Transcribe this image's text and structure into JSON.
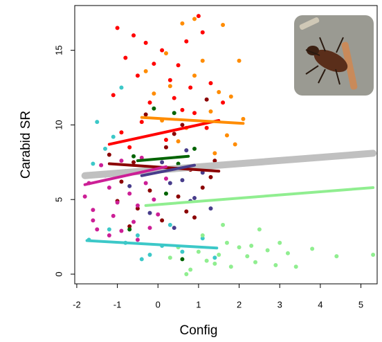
{
  "chart_data": {
    "type": "scatter",
    "x_label": "Config",
    "y_label": "Carabid SR",
    "xlim": [
      -2.05,
      5.4
    ],
    "ylim": [
      -0.65,
      18
    ],
    "xticks": [
      -2,
      -1,
      0,
      1,
      2,
      3,
      4,
      5
    ],
    "yticks": [
      0,
      5,
      10,
      15
    ],
    "overall_fit": {
      "color": "#c0c0c0",
      "x": [
        -1.8,
        5.3
      ],
      "y": [
        6.6,
        8.1
      ]
    },
    "series": [
      {
        "color": "#ff0000",
        "x": [
          -1,
          -0.6,
          -0.3,
          0.1,
          -0.8,
          0.5,
          1,
          1.1,
          -0.5,
          0.3,
          0.8,
          -1.1,
          0.6,
          -0.2,
          1.3,
          -0.9,
          0.2,
          -0.4,
          0.9,
          1.2,
          -0.7,
          0.4,
          1.6,
          0.7,
          -0.1
        ],
        "y": [
          16.5,
          16,
          15.5,
          15,
          14.5,
          14,
          17.3,
          16.2,
          13.3,
          13,
          12.5,
          12,
          11,
          11.5,
          12.8,
          9.5,
          9,
          10.2,
          10.8,
          9.8,
          8.5,
          11.8,
          11.5,
          15.6,
          14.1
        ],
        "fit": {
          "x": [
            -1.2,
            1.5
          ],
          "y": [
            8.7,
            10.3
          ]
        }
      },
      {
        "color": "#ff8c00",
        "x": [
          0.6,
          1.6,
          0.2,
          1.1,
          2,
          -0.3,
          0.9,
          1.5,
          0.3,
          1.8,
          -0.1,
          1.3,
          0.7,
          1.7,
          0.5,
          1.4,
          1.9,
          2.1,
          0.1,
          0.9
        ],
        "y": [
          16.8,
          16.7,
          14.8,
          14.3,
          14.3,
          13.6,
          13.3,
          12.2,
          12.6,
          11.9,
          12.1,
          10.9,
          9.8,
          9.3,
          8.9,
          8.1,
          8.7,
          10.4,
          10.3,
          17.1
        ],
        "fit": {
          "x": [
            -0.4,
            2.1
          ],
          "y": [
            10.5,
            10.1
          ]
        }
      },
      {
        "color": "#8b0000",
        "x": [
          -1.2,
          -0.6,
          0.2,
          0.8,
          1.3,
          -0.9,
          -0.2,
          0.5,
          1.1,
          -0.5,
          0.1,
          0.7,
          -1,
          0.4,
          -0.3,
          1.4,
          0.9,
          -0.7,
          0.6,
          1.2
        ],
        "y": [
          8,
          7.5,
          8.5,
          7,
          6.5,
          6.2,
          5.6,
          5.2,
          5.8,
          4.4,
          3.6,
          4.2,
          4.9,
          9.4,
          10.7,
          7.6,
          3.8,
          3.2,
          10,
          11.7
        ],
        "fit": {
          "x": [
            -1.2,
            1.5
          ],
          "y": [
            7.4,
            6.9
          ]
        }
      },
      {
        "color": "#cc1f96",
        "x": [
          -1.8,
          -1.6,
          -1.5,
          -1.3,
          -1.2,
          -1.1,
          -1,
          -0.9,
          -0.8,
          -0.7,
          -0.6,
          -0.5,
          -0.4,
          -0.3,
          -0.2,
          -0.1,
          0,
          0.2,
          -1.4,
          -1.7,
          -0.9,
          -0.5,
          -1.2,
          0.1,
          -1.6
        ],
        "y": [
          5.2,
          4.3,
          3,
          6.6,
          5.8,
          3.9,
          4.8,
          2.9,
          6.9,
          5.4,
          3.5,
          4.6,
          7.8,
          6.1,
          3.1,
          5,
          4,
          6.4,
          7.3,
          6.1,
          7.6,
          2.3,
          2.6,
          7.1,
          3.6
        ],
        "fit": {
          "x": [
            -1.8,
            0.2
          ],
          "y": [
            6.0,
            7.2
          ]
        }
      },
      {
        "color": "#3cc8c8",
        "x": [
          -1.7,
          -1.2,
          -0.8,
          -0.5,
          -0.2,
          0.1,
          0.6,
          1.1,
          1.4,
          -1.5,
          -1.3,
          -0.9,
          -1.1,
          -1.6,
          -0.4,
          0.3
        ],
        "y": [
          2.3,
          3,
          2.1,
          2.6,
          1.3,
          1.9,
          1.5,
          2.4,
          1.1,
          10.2,
          8.4,
          12.5,
          9.2,
          7.4,
          1.0,
          3.3
        ],
        "fit": {
          "x": [
            -1.75,
            1.45
          ],
          "y": [
            2.25,
            1.75
          ]
        }
      },
      {
        "color": "#90ee90",
        "x": [
          0.3,
          0.7,
          0.8,
          1,
          1.2,
          1.4,
          1.5,
          1.7,
          1.8,
          2,
          2.2,
          2.4,
          2.5,
          2.7,
          2.9,
          3,
          3.2,
          3.4,
          3.8,
          4.4,
          5.3,
          1.6,
          2.3,
          1.1,
          0.5
        ],
        "y": [
          1.1,
          0,
          0.3,
          1.5,
          0.9,
          0.7,
          1.3,
          2.1,
          0.5,
          1.8,
          1.2,
          0.8,
          3,
          1.6,
          0.6,
          2.1,
          1.4,
          0.5,
          1.7,
          1.2,
          1.3,
          3.3,
          1.9,
          2.6,
          1.8
        ],
        "fit": {
          "x": [
            -0.3,
            5.3
          ],
          "y": [
            4.6,
            5.8
          ]
        }
      },
      {
        "color": "#006400",
        "x": [
          -0.1,
          0.4,
          -0.6,
          0.5,
          0.9,
          0.6,
          -0.7,
          0.2
        ],
        "y": [
          11.1,
          10.8,
          7.9,
          7.4,
          8.4,
          1,
          3,
          5.4
        ],
        "fit": {
          "x": [
            -0.5,
            0.75
          ],
          "y": [
            7.6,
            7.9
          ]
        }
      },
      {
        "color": "#483d8b",
        "x": [
          -0.4,
          0.1,
          0.6,
          0.9,
          1.1,
          -0.2,
          0.4,
          0.8,
          -0.7,
          1.3,
          0.3,
          0.7
        ],
        "y": [
          6.8,
          7.5,
          6.3,
          5.1,
          6.8,
          4.1,
          3.1,
          4.9,
          5.9,
          4.4,
          6.1,
          8.3
        ],
        "fit": {
          "x": [
            -0.4,
            0.9
          ],
          "y": [
            6.6,
            7.3
          ]
        }
      }
    ]
  }
}
